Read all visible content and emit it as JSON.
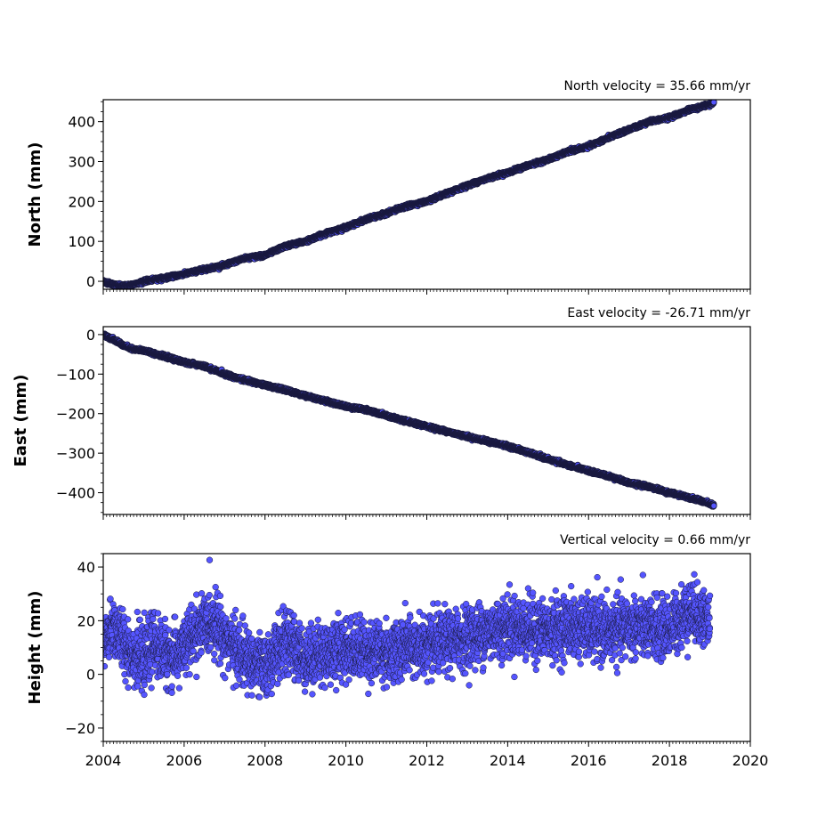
{
  "chart_data": [
    {
      "type": "scatter",
      "title": "North velocity = 35.66 mm/yr",
      "xlabel": "",
      "ylabel": "North (mm)",
      "xlim": [
        2004,
        2020
      ],
      "ylim": [
        -20,
        455
      ],
      "yticks": [
        0,
        100,
        200,
        300,
        400
      ],
      "ytick_labels": [
        "0",
        "100",
        "200",
        "300",
        "400"
      ],
      "xticks": [
        2004,
        2006,
        2008,
        2010,
        2012,
        2014,
        2016,
        2018,
        2020
      ],
      "xtick_labels": [],
      "grid": false,
      "marker_color": "#5555ff",
      "edge_color": "#1a1a40",
      "series": [
        {
          "x": [
            2004.0,
            2004.25,
            2004.5,
            2004.75,
            2005.0,
            2005.5,
            2006.0,
            2006.5,
            2007.0,
            2007.5,
            2008.0,
            2008.5,
            2009.0,
            2009.5,
            2010.0,
            2010.5,
            2011.0,
            2011.5,
            2012.0,
            2012.5,
            2013.0,
            2013.5,
            2014.0,
            2014.5,
            2015.0,
            2015.5,
            2016.0,
            2016.5,
            2017.0,
            2017.5,
            2018.0,
            2018.5,
            2019.0,
            2019.1
          ],
          "y": [
            0,
            -8,
            -12,
            -8,
            0,
            8,
            18,
            30,
            40,
            58,
            65,
            88,
            100,
            120,
            135,
            155,
            170,
            188,
            200,
            220,
            240,
            258,
            272,
            290,
            305,
            325,
            338,
            360,
            380,
            400,
            410,
            430,
            443,
            448
          ]
        }
      ]
    },
    {
      "type": "scatter",
      "title": "East velocity = -26.71 mm/yr",
      "xlabel": "",
      "ylabel": "East (mm)",
      "xlim": [
        2004,
        2020
      ],
      "ylim": [
        -455,
        20
      ],
      "yticks": [
        0,
        -100,
        -200,
        -300,
        -400
      ],
      "ytick_labels": [
        "0",
        "−100",
        "−200",
        "−300",
        "−400"
      ],
      "xticks": [
        2004,
        2006,
        2008,
        2010,
        2012,
        2014,
        2016,
        2018,
        2020
      ],
      "xtick_labels": [],
      "grid": false,
      "marker_color": "#5555ff",
      "edge_color": "#1a1a40",
      "series": [
        {
          "x": [
            2004.0,
            2004.25,
            2004.5,
            2004.75,
            2005.0,
            2005.5,
            2006.0,
            2006.5,
            2007.0,
            2007.5,
            2008.0,
            2008.5,
            2009.0,
            2009.5,
            2010.0,
            2010.5,
            2011.0,
            2011.5,
            2012.0,
            2012.5,
            2013.0,
            2013.5,
            2014.0,
            2014.5,
            2015.0,
            2015.5,
            2016.0,
            2016.5,
            2017.0,
            2017.5,
            2018.0,
            2018.5,
            2019.0,
            2019.1
          ],
          "y": [
            0,
            -12,
            -28,
            -38,
            -40,
            -55,
            -70,
            -80,
            -100,
            -115,
            -128,
            -140,
            -155,
            -168,
            -182,
            -190,
            -205,
            -220,
            -232,
            -245,
            -258,
            -270,
            -282,
            -298,
            -315,
            -330,
            -345,
            -358,
            -375,
            -385,
            -400,
            -412,
            -428,
            -433
          ]
        }
      ]
    },
    {
      "type": "scatter",
      "title": "Vertical velocity = 0.66 mm/yr",
      "xlabel": "",
      "ylabel": "Height (mm)",
      "xlim": [
        2004,
        2020
      ],
      "ylim": [
        -25,
        45
      ],
      "yticks": [
        -20,
        0,
        20,
        40
      ],
      "ytick_labels": [
        "−20",
        "0",
        "20",
        "40"
      ],
      "xticks": [
        2004,
        2006,
        2008,
        2010,
        2012,
        2014,
        2016,
        2018,
        2020
      ],
      "xtick_labels": [
        "2004",
        "2006",
        "2008",
        "2010",
        "2012",
        "2014",
        "2016",
        "2018",
        "2020"
      ],
      "grid": false,
      "marker_color": "#5555ff",
      "edge_color": "#1a1a40",
      "series": [
        {
          "x": [
            2004.0,
            2004.25,
            2004.5,
            2004.75,
            2005.0,
            2005.25,
            2005.5,
            2005.75,
            2006.0,
            2006.25,
            2006.5,
            2006.75,
            2007.0,
            2007.25,
            2007.5,
            2007.75,
            2008.0,
            2008.25,
            2008.5,
            2008.75,
            2009.0,
            2009.5,
            2010.0,
            2010.5,
            2011.0,
            2011.5,
            2012.0,
            2012.5,
            2013.0,
            2013.5,
            2014.0,
            2014.5,
            2015.0,
            2015.5,
            2016.0,
            2016.5,
            2017.0,
            2017.5,
            2018.0,
            2018.5,
            2019.0
          ],
          "y": [
            10,
            18,
            12,
            8,
            5,
            12,
            8,
            6,
            10,
            15,
            18,
            20,
            14,
            10,
            6,
            4,
            2,
            8,
            12,
            10,
            6,
            8,
            10,
            9,
            8,
            10,
            10,
            12,
            14,
            16,
            18,
            17,
            16,
            18,
            17,
            16,
            18,
            17,
            17,
            24,
            20
          ]
        }
      ]
    }
  ]
}
